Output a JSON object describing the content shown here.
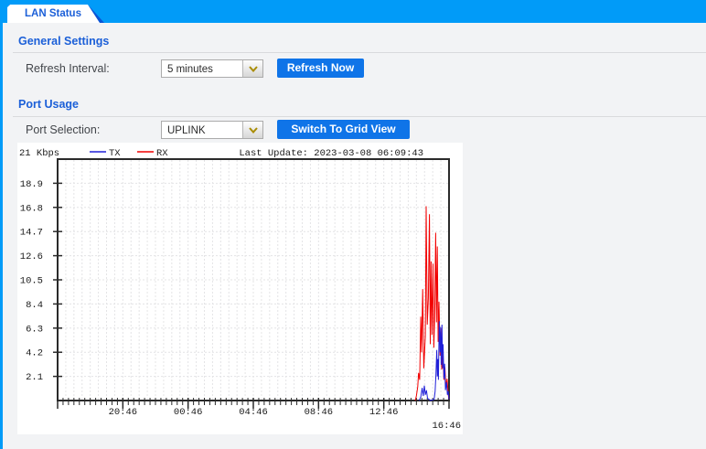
{
  "tab": {
    "label": "LAN Status"
  },
  "sections": {
    "general": {
      "title": "General Settings",
      "refresh_interval_label": "Refresh Interval:",
      "refresh_interval_value": "5 minutes",
      "refresh_button": "Refresh Now"
    },
    "port_usage": {
      "title": "Port Usage",
      "port_selection_label": "Port Selection:",
      "port_selection_value": "UPLINK",
      "grid_view_button": "Switch To Grid View"
    }
  },
  "colors": {
    "topbar_blue": "#019bf8",
    "accent_blue": "#1b5fd8",
    "button_blue": "#0f74e8",
    "tx_blue": "#2020d8",
    "rx_red": "#f20000",
    "page_bg": "#f2f3f5",
    "grid_gray": "#e4e4e6"
  },
  "chart_data": {
    "type": "line",
    "title": "21 Kbps",
    "unit": "Kbps",
    "last_update": "Last Update: 2023-03-08 06:09:43",
    "legend": [
      {
        "name": "TX",
        "color": "#2020d8"
      },
      {
        "name": "RX",
        "color": "#f20000"
      }
    ],
    "ylim": [
      0,
      21
    ],
    "y_ticks": [
      2.1,
      4.2,
      6.3,
      8.4,
      10.5,
      12.6,
      14.7,
      16.8,
      18.9
    ],
    "x_window_minutes": 1440,
    "x_minor_tick_minutes": 20,
    "x_grid_minutes": 30,
    "x_major_ticks": [
      {
        "minute": 240,
        "label": "20:46"
      },
      {
        "minute": 480,
        "label": "00:46"
      },
      {
        "minute": 720,
        "label": "04:46"
      },
      {
        "minute": 960,
        "label": "08:46"
      },
      {
        "minute": 1200,
        "label": "12:46"
      }
    ],
    "x_end_label": "16:46",
    "series": [
      {
        "name": "RX",
        "color": "#f20000",
        "points": [
          [
            1316,
            0
          ],
          [
            1320,
            0.4
          ],
          [
            1325,
            1.2
          ],
          [
            1328,
            2.4
          ],
          [
            1332,
            1.8
          ],
          [
            1336,
            7.3
          ],
          [
            1339,
            4.2
          ],
          [
            1343,
            9.7
          ],
          [
            1347,
            2.8
          ],
          [
            1353,
            5.6
          ],
          [
            1356,
            16.9
          ],
          [
            1360,
            6.6
          ],
          [
            1364,
            8.9
          ],
          [
            1368,
            16.2
          ],
          [
            1371,
            4.9
          ],
          [
            1374,
            12.1
          ],
          [
            1377,
            5.7
          ],
          [
            1381,
            11.9
          ],
          [
            1384,
            4.6
          ],
          [
            1388,
            8.2
          ],
          [
            1391,
            14.6
          ],
          [
            1394,
            6.8
          ],
          [
            1397,
            13.4
          ],
          [
            1400,
            5.1
          ],
          [
            1403,
            8.6
          ],
          [
            1407,
            3.9
          ],
          [
            1410,
            6.3
          ],
          [
            1413,
            2.7
          ],
          [
            1417,
            4.4
          ],
          [
            1421,
            1.8
          ],
          [
            1425,
            2.9
          ],
          [
            1429,
            1.1
          ],
          [
            1433,
            1.9
          ],
          [
            1437,
            0.5
          ],
          [
            1440,
            0.1
          ]
        ]
      },
      {
        "name": "TX",
        "color": "#2020d8",
        "points": [
          [
            1330,
            0
          ],
          [
            1336,
            0.3
          ],
          [
            1341,
            1.1
          ],
          [
            1345,
            0.4
          ],
          [
            1349,
            1.3
          ],
          [
            1353,
            0.5
          ],
          [
            1357,
            0.9
          ],
          [
            1361,
            0.2
          ],
          [
            1366,
            0.1
          ],
          [
            1372,
            0
          ],
          [
            1385,
            0.1
          ],
          [
            1389,
            0.8
          ],
          [
            1392,
            2.3
          ],
          [
            1395,
            4.4
          ],
          [
            1397,
            2.1
          ],
          [
            1399,
            3.6
          ],
          [
            1401,
            1.8
          ],
          [
            1404,
            6.9
          ],
          [
            1407,
            4.2
          ],
          [
            1409,
            6.4
          ],
          [
            1411,
            3.1
          ],
          [
            1414,
            6.6
          ],
          [
            1416,
            2.8
          ],
          [
            1418,
            4.9
          ],
          [
            1421,
            1.9
          ],
          [
            1424,
            3.2
          ],
          [
            1427,
            0.9
          ],
          [
            1431,
            1.6
          ],
          [
            1434,
            0.5
          ],
          [
            1437,
            0.8
          ],
          [
            1440,
            0.1
          ]
        ]
      }
    ]
  }
}
